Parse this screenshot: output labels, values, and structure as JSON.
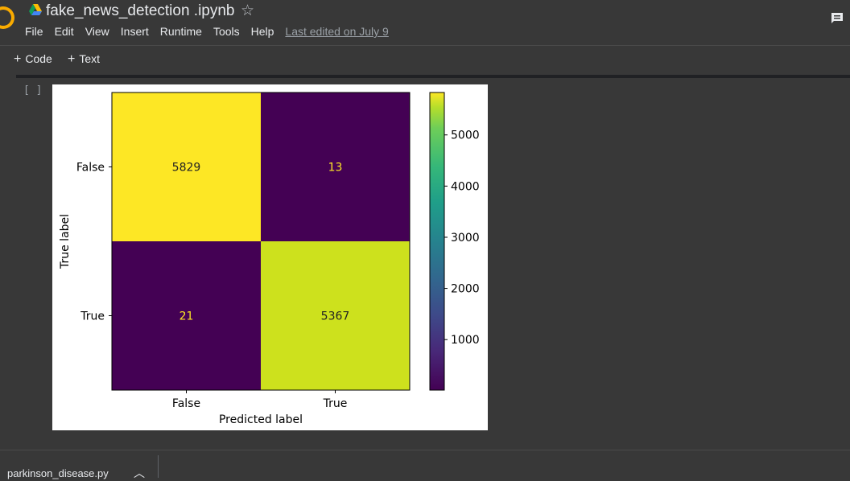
{
  "notebook": {
    "title": "fake_news_detection .ipynb",
    "menu": [
      "File",
      "Edit",
      "View",
      "Insert",
      "Runtime",
      "Tools",
      "Help"
    ],
    "last_edited": "Last edited on July 9"
  },
  "toolbar": {
    "code_label": "Code",
    "text_label": "Text"
  },
  "cell": {
    "exec_indicator": "[ ]"
  },
  "chart_data": {
    "type": "heatmap",
    "xlabel": "Predicted label",
    "ylabel": "True label",
    "x_categories": [
      "False",
      "True"
    ],
    "y_categories": [
      "False",
      "True"
    ],
    "values": [
      [
        5829,
        13
      ],
      [
        21,
        5367
      ]
    ],
    "colorbar": {
      "ticks": [
        1000,
        2000,
        3000,
        4000,
        5000
      ],
      "range": [
        13,
        5829
      ],
      "colormap": "viridis"
    },
    "colors": {
      "high": "#fde725",
      "mid_high": "#cde11d",
      "low": "#440154"
    }
  },
  "bottom": {
    "file_tab": "parkinson_disease.py"
  }
}
